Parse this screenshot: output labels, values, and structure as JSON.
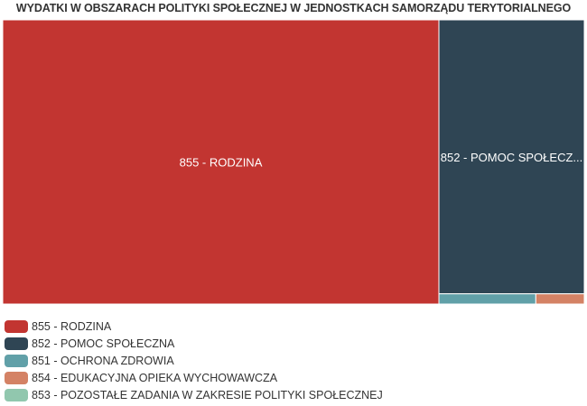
{
  "chart_data": {
    "type": "treemap",
    "title": "WYDATKI W OBSZARACH POLITYKI SPOŁECZNEJ W JEDNOSTKACH SAMORZĄDU TERYTORIALNEGO",
    "value_note": "relative tile areas (percent of total), estimated from tile sizes; no values printed",
    "items": [
      {
        "name": "855 - RODZINA",
        "label": "855 - RODZINA",
        "value": 75.0,
        "color": "#c23531"
      },
      {
        "name": "852 - POMOC SPOŁECZNA",
        "label": "852 - POMOC SPOŁECZ...",
        "value": 24.1,
        "color": "#2f4554"
      },
      {
        "name": "851 - OCHRONA ZDROWIA",
        "label": "",
        "value": 0.6,
        "color": "#61a0a8"
      },
      {
        "name": "854 - EDUKACYJNA OPIEKA WYCHOWAWCZA",
        "label": "",
        "value": 0.3,
        "color": "#d48265"
      },
      {
        "name": "853 - POZOSTAŁE ZADANIA W ZAKRESIE POLITYKI SPOŁECZNEJ",
        "label": "",
        "value": 0.0,
        "color": "#91c7ae"
      }
    ],
    "legend_position": "bottom-left"
  }
}
